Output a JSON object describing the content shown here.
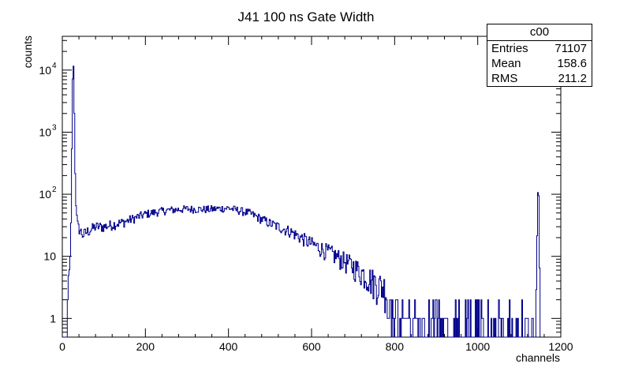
{
  "chart_data": {
    "type": "line",
    "title": "J41 100 ns Gate Width",
    "xlabel": "channels",
    "ylabel": "counts",
    "xlim": [
      0,
      1200
    ],
    "ylim": [
      0.5,
      35000
    ],
    "yscale": "log",
    "x_ticks": [
      "0",
      "200",
      "400",
      "600",
      "800",
      "1000",
      "1200"
    ],
    "y_ticks": [
      {
        "value": 1,
        "label": "1"
      },
      {
        "value": 10,
        "label": "10"
      },
      {
        "value": 100,
        "label": "10",
        "exp": "2"
      },
      {
        "value": 1000,
        "label": "10",
        "exp": "3"
      },
      {
        "value": 10000,
        "label": "10",
        "exp": "4"
      }
    ],
    "line_color": "#00008b",
    "grid": false,
    "series": [
      {
        "x": [
          0,
          4,
          8,
          12,
          16,
          20,
          22,
          24,
          26,
          28,
          30,
          32,
          34,
          36,
          38,
          40,
          45,
          50,
          60,
          80,
          100,
          150,
          200,
          250,
          300,
          350,
          400,
          450,
          500,
          550,
          600,
          650,
          700,
          750,
          800,
          850,
          900,
          950,
          1000,
          1050,
          1100,
          1130,
          1140,
          1142,
          1144,
          1146,
          1148,
          1150
        ],
        "y": [
          0.5,
          1,
          1,
          2,
          4,
          10,
          100,
          3000,
          17000,
          8000,
          500,
          100,
          50,
          35,
          30,
          28,
          25,
          22,
          25,
          30,
          30,
          36,
          48,
          55,
          58,
          57,
          60,
          50,
          34,
          25,
          16,
          11,
          7,
          4,
          2.5,
          1.8,
          1.4,
          1.2,
          1,
          1,
          1,
          1,
          1,
          10,
          50,
          250,
          40,
          0.5
        ]
      }
    ],
    "stats": {
      "title": "c00",
      "rows": [
        {
          "label": "Entries",
          "value": "71107"
        },
        {
          "label": "Mean",
          "value": "158.6"
        },
        {
          "label": "RMS",
          "value": "211.2"
        }
      ]
    }
  }
}
